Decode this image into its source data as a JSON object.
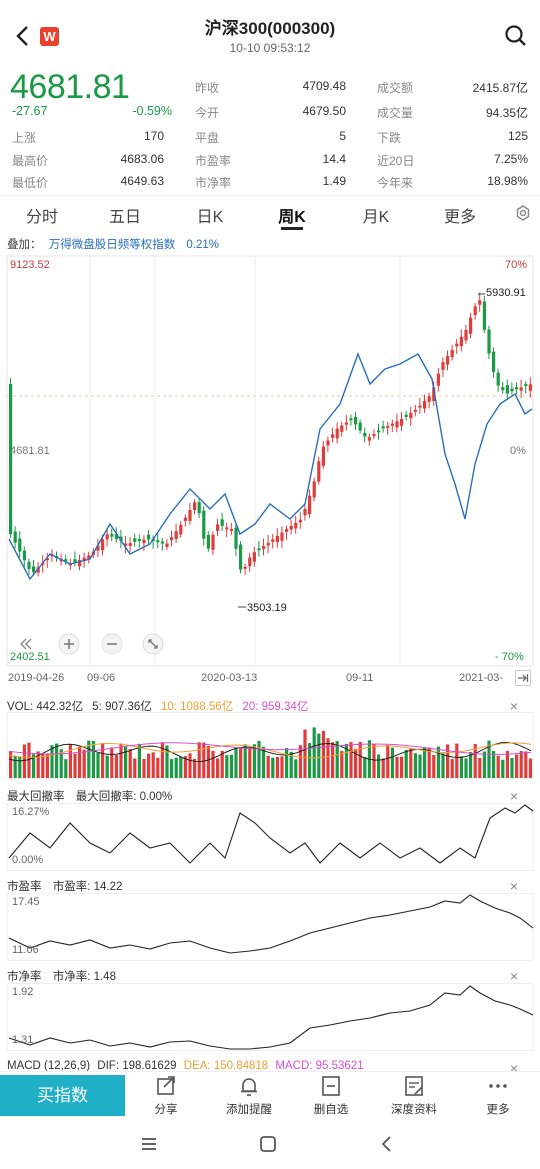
{
  "header": {
    "title": "沪深300(000300)",
    "subtitle": "10-10 09:53:12",
    "logo_text": "W"
  },
  "quote": {
    "price": "4681.81",
    "change": "-27.67",
    "change_pct": "-0.59%",
    "stats": [
      {
        "label": "昨收",
        "value": "4709.48"
      },
      {
        "label": "成交额",
        "value": "2415.87亿"
      },
      {
        "label": "今开",
        "value": "4679.50"
      },
      {
        "label": "成交量",
        "value": "94.35亿"
      },
      {
        "label": "上涨",
        "value": "170"
      },
      {
        "label": "平盘",
        "value": "5"
      },
      {
        "label": "下跌",
        "value": "125"
      },
      {
        "label": "最高价",
        "value": "4683.06"
      },
      {
        "label": "市盈率",
        "value": "14.4"
      },
      {
        "label": "近20日",
        "value": "7.25%"
      },
      {
        "label": "最低价",
        "value": "4649.63"
      },
      {
        "label": "市净率",
        "value": "1.49"
      },
      {
        "label": "今年来",
        "value": "18.98%"
      }
    ]
  },
  "tabs": [
    "分时",
    "五日",
    "日K",
    "周K",
    "月K",
    "更多"
  ],
  "active_tab": "周K",
  "overlay": {
    "label": "叠加：",
    "name": "万得微盘股日频等权指数",
    "value": "0.21%"
  },
  "chart": {
    "max_label": "9123.52",
    "mid_label": "4681.81",
    "min_label": "2402.51",
    "pct_top": "70%",
    "pct_mid": "0%",
    "pct_bottom": "- 70%",
    "high_marker": "5930.91",
    "low_marker": "3503.19",
    "x_ticks": [
      "2019-04-26",
      "09-06",
      "2020-03-13",
      "09-11",
      "2021-03-"
    ]
  },
  "volume": {
    "label": "VOL: 442.32亿",
    "ma5": "5: 907.36亿",
    "ma10": "10: 1088.56亿",
    "ma20": "20: 959.34亿"
  },
  "drawdown": {
    "label": "最大回撤率",
    "value_label": "最大回撤率: 0.00%",
    "top": "16.27%",
    "bottom": "0.00%"
  },
  "pe": {
    "label": "市盈率",
    "value_label": "市盈率: 14.22",
    "top": "17.45",
    "bottom": "11.06"
  },
  "pb": {
    "label": "市净率",
    "value_label": "市净率: 1.48",
    "top": "1.92",
    "bottom": "1.31"
  },
  "macd": {
    "label": "MACD (12,26,9)",
    "dif": "DIF: 198.61629",
    "dea": "DEA: 150.84818",
    "macd": "MACD: 95.53621"
  },
  "bottom_bar": {
    "buy": "买指数",
    "items": [
      "分享",
      "添加提醒",
      "删自选",
      "深度资料",
      "更多"
    ]
  },
  "colors": {
    "up": "#e23b3b",
    "down": "#1a9a45",
    "blue": "#2a6ebd",
    "ma10": "#f0a030",
    "ma20": "#d64fd0",
    "accent": "#1fb0c8"
  }
}
